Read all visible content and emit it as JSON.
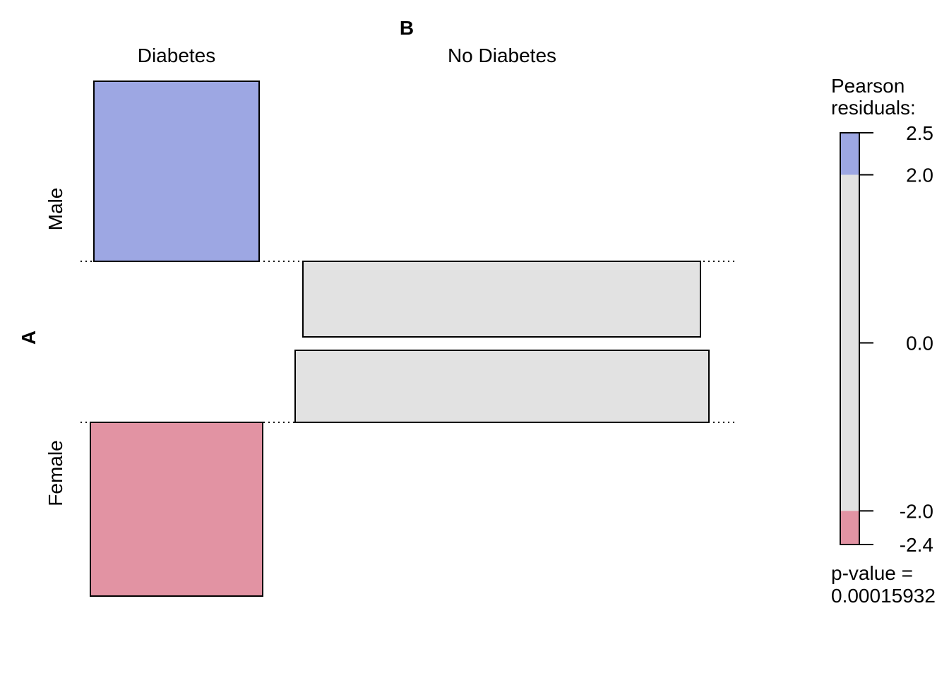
{
  "chart_data": {
    "type": "association",
    "x_variable": "B",
    "y_variable": "A",
    "columns": [
      "Diabetes",
      "No Diabetes"
    ],
    "rows": [
      "Male",
      "Female"
    ],
    "cells": [
      {
        "row": "Male",
        "column": "Diabetes",
        "residual_band": "above 2.0",
        "color": "#9DA7E3"
      },
      {
        "row": "Male",
        "column": "No Diabetes",
        "residual_band": "-2.0 to 2.0",
        "color": "#E2E2E2"
      },
      {
        "row": "Female",
        "column": "No Diabetes",
        "residual_band": "-2.0 to 2.0",
        "color": "#E2E2E2"
      },
      {
        "row": "Female",
        "column": "Diabetes",
        "residual_band": "below -2.0",
        "color": "#E293A3"
      }
    ],
    "legend": {
      "title_line1": "Pearson",
      "title_line2": "residuals:",
      "range": [
        -2.4,
        2.5
      ],
      "ticks": [
        {
          "value": 2.5,
          "label": "2.5"
        },
        {
          "value": 2.0,
          "label": "2.0"
        },
        {
          "value": 0.0,
          "label": "0.0"
        },
        {
          "value": -2.0,
          "label": "-2.0"
        },
        {
          "value": -2.4,
          "label": "-2.4"
        }
      ],
      "bands": [
        {
          "from": 2.0,
          "to": 2.5,
          "color": "#9DA7E3"
        },
        {
          "from": -2.0,
          "to": 2.0,
          "color": "#E2E2E2"
        },
        {
          "from": -2.4,
          "to": -2.0,
          "color": "#E293A3"
        }
      ],
      "pvalue_line1": "p-value =",
      "pvalue_line2": "0.00015932"
    }
  }
}
